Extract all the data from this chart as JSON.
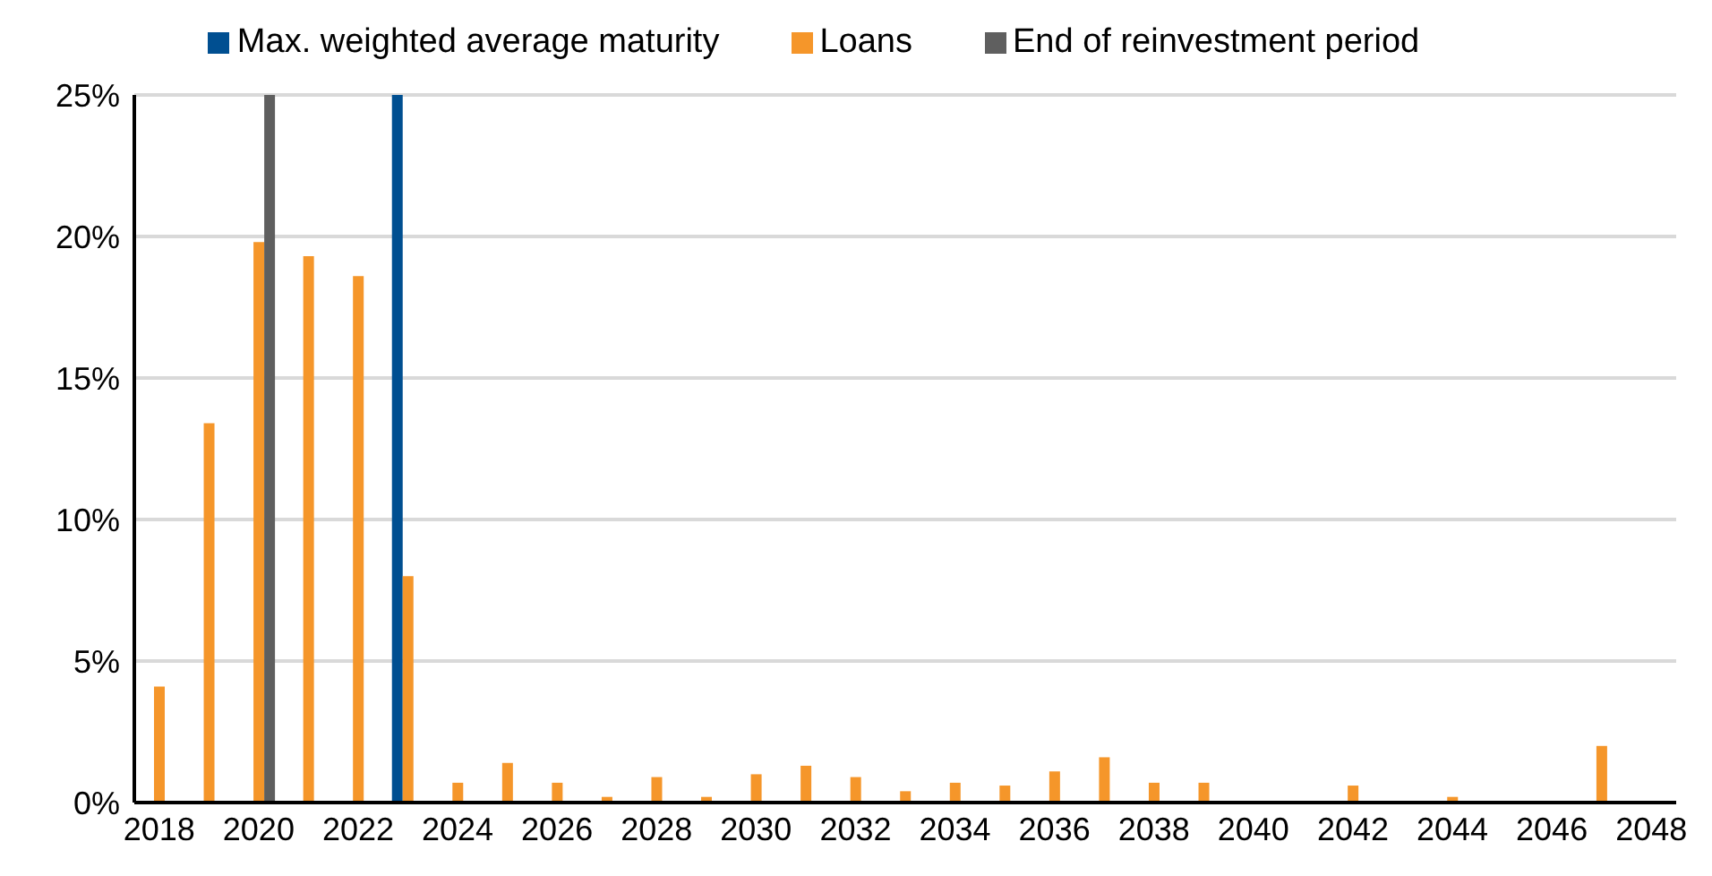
{
  "chart_data": {
    "type": "bar",
    "categories": [
      "2018",
      null,
      "2020",
      null,
      "2022",
      null,
      "2024",
      null,
      "2026",
      null,
      "2028",
      null,
      "2030",
      null,
      "2032",
      null,
      "2034",
      null,
      "2036",
      null,
      "2038",
      null,
      "2040",
      null,
      "2042",
      null,
      "2044",
      null,
      "2046",
      null,
      "2048"
    ],
    "series": [
      {
        "name": "Max. weighted average maturity",
        "color": "#004f91",
        "values": [
          null,
          null,
          null,
          null,
          null,
          25,
          null,
          null,
          null,
          null,
          null,
          null,
          null,
          null,
          null,
          null,
          null,
          null,
          null,
          null,
          null,
          null,
          null,
          null,
          null,
          null,
          null,
          null,
          null,
          null,
          null
        ]
      },
      {
        "name": "Loans",
        "color": "#f5962a",
        "values": [
          4.1,
          13.4,
          19.8,
          19.3,
          18.6,
          8.0,
          0.7,
          1.4,
          0.7,
          0.2,
          0.9,
          0.2,
          1.0,
          1.3,
          0.9,
          0.4,
          0.7,
          0.6,
          1.1,
          1.6,
          0.7,
          0.7,
          0,
          0,
          0.6,
          0,
          0.2,
          0,
          0,
          2.0,
          0
        ]
      },
      {
        "name": "End of reinvestment period",
        "color": "#5f5f5f",
        "values": [
          null,
          null,
          25,
          null,
          null,
          null,
          null,
          null,
          null,
          null,
          null,
          null,
          null,
          null,
          null,
          null,
          null,
          null,
          null,
          null,
          null,
          null,
          null,
          null,
          null,
          null,
          null,
          null,
          null,
          null,
          null
        ]
      }
    ],
    "ylim": [
      0,
      25
    ],
    "yticks": [
      {
        "value": 0,
        "label": "0%"
      },
      {
        "value": 5,
        "label": "5%"
      },
      {
        "value": 10,
        "label": "10%"
      },
      {
        "value": 15,
        "label": "15%"
      },
      {
        "value": 20,
        "label": "20%"
      },
      {
        "value": 25,
        "label": "25%"
      }
    ],
    "grid": "y",
    "legend": "top"
  }
}
